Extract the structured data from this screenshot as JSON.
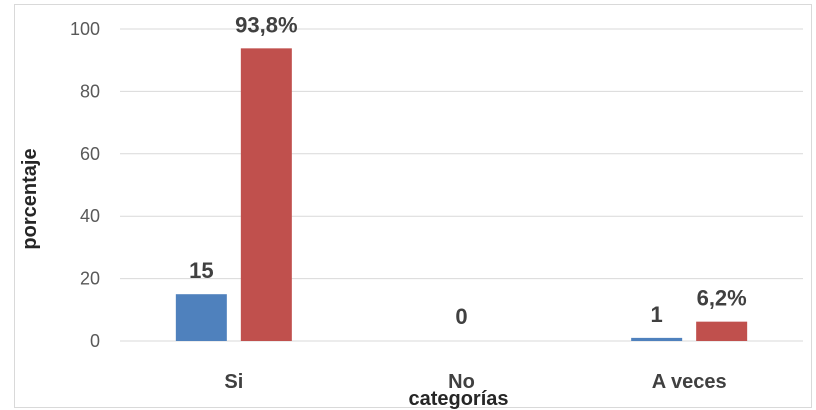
{
  "chart_data": {
    "type": "bar",
    "title": "",
    "xlabel": "categorías",
    "ylabel": "porcentaje",
    "ylim": [
      0,
      100
    ],
    "yticks": [
      0,
      20,
      40,
      60,
      80,
      100
    ],
    "grid": true,
    "legend": "none",
    "categories": [
      "Si",
      "No",
      "A veces"
    ],
    "series": [
      {
        "color": "#4f81bd",
        "values": [
          15,
          0,
          1
        ],
        "data_labels": [
          "15",
          "0",
          "1"
        ]
      },
      {
        "color": "#c0504d",
        "values": [
          93.8,
          0,
          6.2
        ],
        "data_labels": [
          "93,8%",
          "",
          "6,2%"
        ]
      }
    ]
  }
}
